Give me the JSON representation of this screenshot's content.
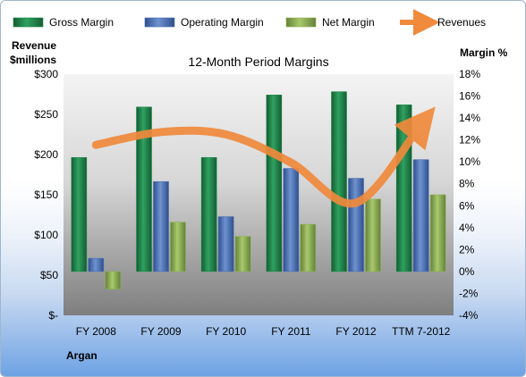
{
  "chart_data": {
    "type": "bar",
    "title": "12-Month Period Margins",
    "company": "Argan",
    "left_axis_title": [
      "Revenue",
      "$millions"
    ],
    "right_axis_title": "Margin %",
    "categories": [
      "FY 2008",
      "FY 2009",
      "FY 2010",
      "FY 2011",
      "FY 2012",
      "TTM 7-2012"
    ],
    "left_axis": {
      "min": 0,
      "max": 300,
      "step": 50,
      "tick_labels": [
        "$-",
        "$50",
        "$100",
        "$150",
        "$200",
        "$250",
        "$300"
      ]
    },
    "right_axis": {
      "min": -4,
      "max": 18,
      "step": 2,
      "tick_labels": [
        "-4%",
        "-2%",
        "0%",
        "2%",
        "4%",
        "6%",
        "8%",
        "10%",
        "12%",
        "14%",
        "16%",
        "18%"
      ]
    },
    "series": [
      {
        "name": "Gross Margin",
        "axis": "right",
        "color": "#1f8a4c",
        "values": [
          10.4,
          15.0,
          10.4,
          16.1,
          16.4,
          15.2
        ]
      },
      {
        "name": "Operating Margin",
        "axis": "right",
        "color": "#4a6fb3",
        "values": [
          1.2,
          8.2,
          5.0,
          9.4,
          8.5,
          10.2
        ]
      },
      {
        "name": "Net Margin",
        "axis": "right",
        "color": "#8fb151",
        "values": [
          -1.6,
          4.5,
          3.2,
          4.3,
          6.6,
          7.0
        ]
      },
      {
        "name": "Revenues",
        "axis": "left",
        "type": "line",
        "color": "#f08a3c",
        "values": [
          212,
          228,
          225,
          190,
          140,
          238
        ]
      }
    ],
    "grid": false,
    "legend": "top"
  }
}
